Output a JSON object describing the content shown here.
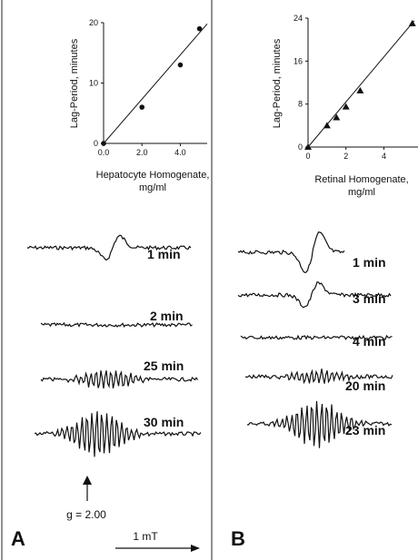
{
  "figure": {
    "panels": [
      {
        "letter": "A",
        "plot": {
          "ylabel": "Lag-Period, minutes",
          "xlabel_line1": "Hepatocyte Homogenate,",
          "xlabel_line2": "mg/ml",
          "xticks": [
            "0.0",
            "2.0",
            "4.0"
          ],
          "yticks": [
            "0",
            "10",
            "20"
          ]
        },
        "traces": [
          {
            "label": "1 min",
            "kind": "doublet"
          },
          {
            "label": "2 min",
            "kind": "flat"
          },
          {
            "label": "25 min",
            "kind": "multiplet-medium"
          },
          {
            "label": "30 min",
            "kind": "multiplet-large"
          }
        ],
        "g_marker": "g = 2.00"
      },
      {
        "letter": "B",
        "plot": {
          "ylabel": "Lag-Period, minutes",
          "xlabel_line1": "Retinal Homogenate,",
          "xlabel_line2": "mg/ml",
          "xticks": [
            "0",
            "2",
            "4"
          ],
          "yticks": [
            "0",
            "8",
            "16",
            "24"
          ]
        },
        "traces": [
          {
            "label": "1 min",
            "kind": "doublet-large"
          },
          {
            "label": "3 min",
            "kind": "doublet"
          },
          {
            "label": "4 min",
            "kind": "flat"
          },
          {
            "label": "20 min",
            "kind": "multiplet-small"
          },
          {
            "label": "23 min",
            "kind": "multiplet-large"
          }
        ]
      }
    ],
    "scale_bar": "1 mT"
  },
  "chart_data": [
    {
      "type": "scatter",
      "title": "",
      "xlabel": "Hepatocyte Homogenate, mg/ml",
      "ylabel": "Lag-Period, minutes",
      "xlim": [
        0,
        5.4
      ],
      "ylim": [
        0,
        20
      ],
      "marker": "circle",
      "x": [
        0,
        2.0,
        4.0,
        5.0
      ],
      "y": [
        0,
        6,
        13,
        19
      ],
      "fit_line": {
        "x": [
          0,
          5.4
        ],
        "y": [
          0,
          19.8
        ]
      }
    },
    {
      "type": "scatter",
      "title": "",
      "xlabel": "Retinal Homogenate, mg/ml",
      "ylabel": "Lag-Period, minutes",
      "xlim": [
        0,
        5.8
      ],
      "ylim": [
        0,
        24
      ],
      "marker": "triangle",
      "x": [
        0,
        1.0,
        1.5,
        2.0,
        2.75,
        5.5
      ],
      "y": [
        0,
        4,
        5.5,
        7.5,
        10.5,
        23
      ],
      "fit_line": {
        "x": [
          0,
          5.6
        ],
        "y": [
          0,
          23.5
        ]
      }
    }
  ]
}
